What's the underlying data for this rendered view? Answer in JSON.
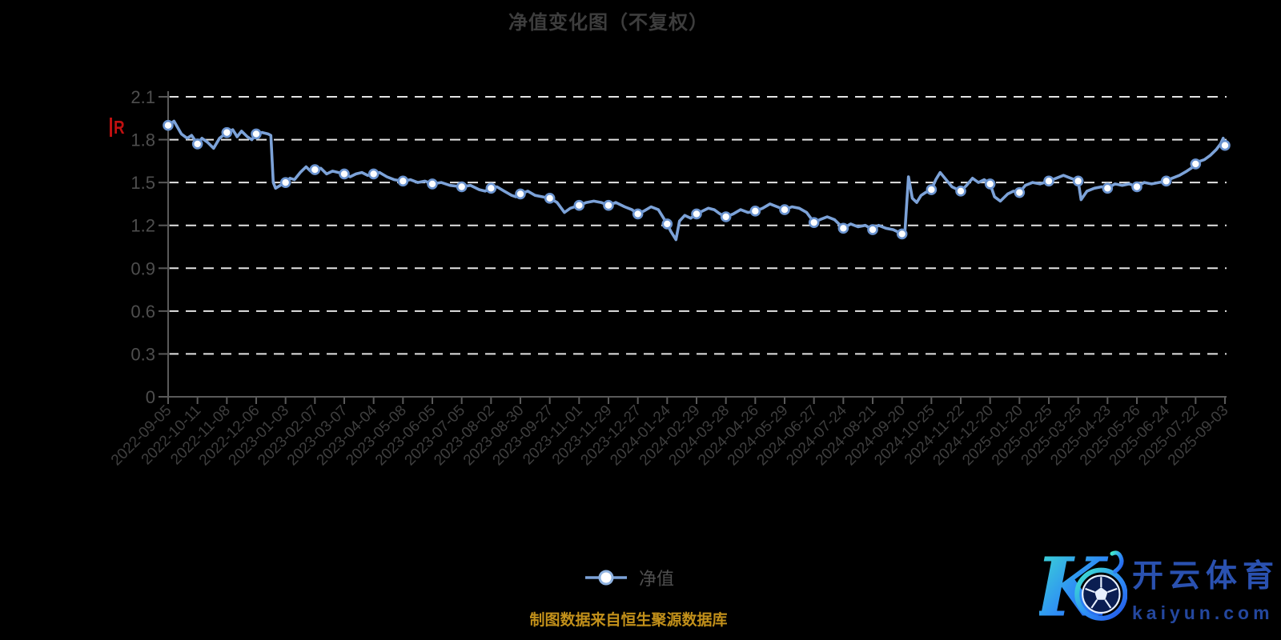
{
  "page": {
    "background": "#000000"
  },
  "chart": {
    "title": "净值变化图（不复权）",
    "flag_text": "R",
    "legend_label": "净值",
    "source_note": "制图数据来自恒生聚源数据库",
    "colors": {
      "line": "#7ca2d8",
      "marker_fill": "#ffffff",
      "marker_stroke": "#6a93cf",
      "grid": "#e3e3e3",
      "axis": "#5a5a5a",
      "y_label": "#4e4e4e",
      "x_label": "#3f3f3f",
      "title": "#3d3d3d",
      "legend_label": "#4f4f4f",
      "source": "#c2901a",
      "flag": "#c01010"
    }
  },
  "logo": {
    "brand_cn": "开云体育",
    "brand_domain": "kaiyun.com",
    "gradient": [
      "#3fe8cb",
      "#2e8cf6",
      "#2356e8"
    ]
  },
  "chart_data": {
    "type": "line",
    "title": "净值变化图（不复权）",
    "legend_position": "bottom",
    "grid": "dashed-horizontal",
    "ylim": [
      0,
      2.1
    ],
    "y_ticks": [
      0,
      0.3,
      0.6,
      0.9,
      1.2,
      1.5,
      1.8,
      2.1
    ],
    "x_label_rotation_deg": 45,
    "categories": [
      "2022-09-05",
      "2022-10-11",
      "2022-11-08",
      "2022-12-06",
      "2023-01-03",
      "2023-02-07",
      "2023-03-07",
      "2023-04-04",
      "2023-05-08",
      "2023-06-05",
      "2023-07-05",
      "2023-08-02",
      "2023-08-30",
      "2023-09-27",
      "2023-11-01",
      "2023-11-29",
      "2023-12-27",
      "2024-01-24",
      "2024-02-29",
      "2024-03-28",
      "2024-04-26",
      "2024-05-29",
      "2024-06-27",
      "2024-07-24",
      "2024-08-21",
      "2024-09-20",
      "2024-10-25",
      "2024-11-22",
      "2024-12-20",
      "2025-01-20",
      "2025-02-25",
      "2025-03-25",
      "2025-04-23",
      "2025-05-26",
      "2025-06-24",
      "2025-07-22",
      "2025-09-03"
    ],
    "series": [
      {
        "name": "净值",
        "values": [
          1.9,
          1.77,
          1.85,
          1.84,
          1.5,
          1.59,
          1.56,
          1.56,
          1.51,
          1.49,
          1.47,
          1.46,
          1.42,
          1.39,
          1.34,
          1.34,
          1.28,
          1.21,
          1.28,
          1.26,
          1.3,
          1.31,
          1.22,
          1.18,
          1.17,
          1.14,
          1.45,
          1.44,
          1.49,
          1.43,
          1.51,
          1.51,
          1.46,
          1.47,
          1.51,
          1.63,
          1.76
        ]
      }
    ],
    "dense_path": [
      [
        0,
        1.9
      ],
      [
        0.2,
        1.93
      ],
      [
        0.45,
        1.84
      ],
      [
        0.65,
        1.81
      ],
      [
        0.8,
        1.83
      ],
      [
        1,
        1.77
      ],
      [
        1.15,
        1.81
      ],
      [
        1.35,
        1.78
      ],
      [
        1.55,
        1.74
      ],
      [
        1.75,
        1.81
      ],
      [
        2,
        1.85
      ],
      [
        2.2,
        1.87
      ],
      [
        2.35,
        1.82
      ],
      [
        2.5,
        1.86
      ],
      [
        2.7,
        1.82
      ],
      [
        2.85,
        1.8
      ],
      [
        3,
        1.84
      ],
      [
        3.2,
        1.85
      ],
      [
        3.4,
        1.84
      ],
      [
        3.5,
        1.83
      ],
      [
        3.58,
        1.5
      ],
      [
        3.66,
        1.46
      ],
      [
        3.82,
        1.48
      ],
      [
        4,
        1.5
      ],
      [
        4.15,
        1.53
      ],
      [
        4.3,
        1.52
      ],
      [
        4.5,
        1.57
      ],
      [
        4.7,
        1.61
      ],
      [
        4.85,
        1.58
      ],
      [
        5,
        1.59
      ],
      [
        5.2,
        1.6
      ],
      [
        5.4,
        1.56
      ],
      [
        5.6,
        1.58
      ],
      [
        5.8,
        1.57
      ],
      [
        6,
        1.56
      ],
      [
        6.2,
        1.54
      ],
      [
        6.4,
        1.56
      ],
      [
        6.6,
        1.57
      ],
      [
        6.8,
        1.55
      ],
      [
        7,
        1.56
      ],
      [
        7.2,
        1.57
      ],
      [
        7.45,
        1.54
      ],
      [
        7.7,
        1.52
      ],
      [
        8,
        1.51
      ],
      [
        8.25,
        1.52
      ],
      [
        8.5,
        1.5
      ],
      [
        8.75,
        1.51
      ],
      [
        9,
        1.49
      ],
      [
        9.3,
        1.5
      ],
      [
        9.6,
        1.48
      ],
      [
        10,
        1.47
      ],
      [
        10.3,
        1.48
      ],
      [
        10.6,
        1.45
      ],
      [
        10.8,
        1.44
      ],
      [
        11,
        1.46
      ],
      [
        11.2,
        1.47
      ],
      [
        11.45,
        1.44
      ],
      [
        11.7,
        1.41
      ],
      [
        11.85,
        1.4
      ],
      [
        12,
        1.42
      ],
      [
        12.25,
        1.44
      ],
      [
        12.5,
        1.41
      ],
      [
        12.75,
        1.4
      ],
      [
        13,
        1.39
      ],
      [
        13.25,
        1.36
      ],
      [
        13.5,
        1.29
      ],
      [
        13.7,
        1.32
      ],
      [
        14,
        1.34
      ],
      [
        14.25,
        1.36
      ],
      [
        14.5,
        1.37
      ],
      [
        14.75,
        1.36
      ],
      [
        15,
        1.34
      ],
      [
        15.25,
        1.36
      ],
      [
        15.55,
        1.33
      ],
      [
        15.8,
        1.31
      ],
      [
        16,
        1.28
      ],
      [
        16.2,
        1.3
      ],
      [
        16.45,
        1.33
      ],
      [
        16.7,
        1.31
      ],
      [
        16.85,
        1.26
      ],
      [
        17,
        1.21
      ],
      [
        17.12,
        1.16
      ],
      [
        17.3,
        1.1
      ],
      [
        17.42,
        1.23
      ],
      [
        17.6,
        1.27
      ],
      [
        17.8,
        1.25
      ],
      [
        18,
        1.28
      ],
      [
        18.2,
        1.3
      ],
      [
        18.4,
        1.32
      ],
      [
        18.6,
        1.31
      ],
      [
        18.8,
        1.28
      ],
      [
        19,
        1.26
      ],
      [
        19.25,
        1.28
      ],
      [
        19.5,
        1.31
      ],
      [
        19.75,
        1.29
      ],
      [
        20,
        1.3
      ],
      [
        20.25,
        1.32
      ],
      [
        20.5,
        1.35
      ],
      [
        20.75,
        1.33
      ],
      [
        21,
        1.31
      ],
      [
        21.25,
        1.33
      ],
      [
        21.5,
        1.32
      ],
      [
        21.75,
        1.29
      ],
      [
        22,
        1.22
      ],
      [
        22.2,
        1.24
      ],
      [
        22.45,
        1.26
      ],
      [
        22.7,
        1.24
      ],
      [
        23,
        1.18
      ],
      [
        23.25,
        1.21
      ],
      [
        23.5,
        1.19
      ],
      [
        23.75,
        1.2
      ],
      [
        24,
        1.17
      ],
      [
        24.2,
        1.2
      ],
      [
        24.45,
        1.18
      ],
      [
        24.7,
        1.17
      ],
      [
        25,
        1.14
      ],
      [
        25.1,
        1.16
      ],
      [
        25.22,
        1.54
      ],
      [
        25.35,
        1.39
      ],
      [
        25.5,
        1.36
      ],
      [
        25.65,
        1.41
      ],
      [
        25.8,
        1.43
      ],
      [
        26,
        1.45
      ],
      [
        26.15,
        1.52
      ],
      [
        26.3,
        1.57
      ],
      [
        26.5,
        1.52
      ],
      [
        26.7,
        1.47
      ],
      [
        27,
        1.44
      ],
      [
        27.2,
        1.48
      ],
      [
        27.4,
        1.53
      ],
      [
        27.6,
        1.5
      ],
      [
        27.8,
        1.52
      ],
      [
        28,
        1.49
      ],
      [
        28.15,
        1.4
      ],
      [
        28.35,
        1.37
      ],
      [
        28.6,
        1.42
      ],
      [
        28.8,
        1.44
      ],
      [
        29,
        1.43
      ],
      [
        29.2,
        1.48
      ],
      [
        29.45,
        1.5
      ],
      [
        29.7,
        1.49
      ],
      [
        30,
        1.51
      ],
      [
        30.25,
        1.53
      ],
      [
        30.5,
        1.55
      ],
      [
        30.75,
        1.53
      ],
      [
        31,
        1.51
      ],
      [
        31.1,
        1.38
      ],
      [
        31.3,
        1.44
      ],
      [
        31.55,
        1.46
      ],
      [
        31.8,
        1.47
      ],
      [
        32,
        1.46
      ],
      [
        32.25,
        1.49
      ],
      [
        32.5,
        1.48
      ],
      [
        32.75,
        1.49
      ],
      [
        33,
        1.47
      ],
      [
        33.25,
        1.5
      ],
      [
        33.5,
        1.49
      ],
      [
        33.75,
        1.5
      ],
      [
        34,
        1.51
      ],
      [
        34.2,
        1.53
      ],
      [
        34.45,
        1.55
      ],
      [
        34.7,
        1.58
      ],
      [
        34.85,
        1.6
      ],
      [
        35,
        1.63
      ],
      [
        35.15,
        1.65
      ],
      [
        35.3,
        1.66
      ],
      [
        35.5,
        1.69
      ],
      [
        35.7,
        1.73
      ],
      [
        35.85,
        1.77
      ],
      [
        35.94,
        1.81
      ],
      [
        36,
        1.76
      ]
    ]
  }
}
